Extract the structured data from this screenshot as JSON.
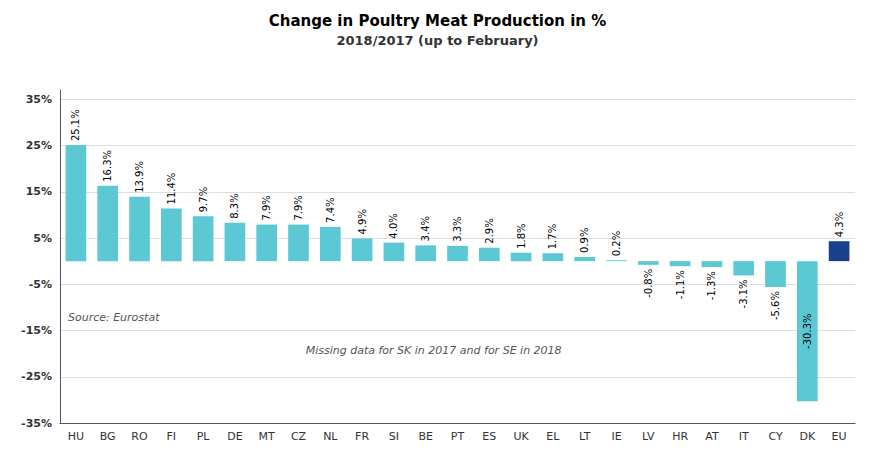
{
  "chart_data": {
    "type": "bar",
    "title": "Change in Poultry Meat Production in %",
    "subtitle": "2018/2017 (up to February)",
    "categories": [
      "HU",
      "BG",
      "RO",
      "FI",
      "PL",
      "DE",
      "MT",
      "CZ",
      "NL",
      "FR",
      "SI",
      "BE",
      "PT",
      "ES",
      "UK",
      "EL",
      "LT",
      "IE",
      "LV",
      "HR",
      "AT",
      "IT",
      "CY",
      "DK",
      "EU"
    ],
    "values": [
      25.1,
      16.3,
      13.9,
      11.4,
      9.7,
      8.3,
      7.9,
      7.9,
      7.4,
      4.9,
      4.0,
      3.4,
      3.3,
      2.9,
      1.8,
      1.7,
      0.9,
      0.2,
      -0.8,
      -1.1,
      -1.3,
      -3.1,
      -5.6,
      -30.3,
      4.3
    ],
    "value_labels": [
      "25.1%",
      "16.3%",
      "13.9%",
      "11.4%",
      "9.7%",
      "8.3%",
      "7.9%",
      "7.9%",
      "7.4%",
      "4.9%",
      "4.0%",
      "3.4%",
      "3.3%",
      "2.9%",
      "1.8%",
      "1.7%",
      "0.9%",
      "0.2%",
      "-0.8%",
      "-1.1%",
      "-1.3%",
      "-3.1%",
      "-5.6%",
      "-30.3%",
      "4.3%"
    ],
    "colors": [
      "#5bc8d4",
      "#5bc8d4",
      "#5bc8d4",
      "#5bc8d4",
      "#5bc8d4",
      "#5bc8d4",
      "#5bc8d4",
      "#5bc8d4",
      "#5bc8d4",
      "#5bc8d4",
      "#5bc8d4",
      "#5bc8d4",
      "#5bc8d4",
      "#5bc8d4",
      "#5bc8d4",
      "#5bc8d4",
      "#5bc8d4",
      "#5bc8d4",
      "#5bc8d4",
      "#5bc8d4",
      "#5bc8d4",
      "#5bc8d4",
      "#5bc8d4",
      "#5bc8d4",
      "#1a3f8f"
    ],
    "ylim": [
      -35,
      37
    ],
    "yticks": [
      {
        "value": -35,
        "label": "-35%"
      },
      {
        "value": -25,
        "label": "-25%"
      },
      {
        "value": -15,
        "label": "-15%"
      },
      {
        "value": -5,
        "label": "-5%"
      },
      {
        "value": 5,
        "label": "5%"
      },
      {
        "value": 15,
        "label": "15%"
      },
      {
        "value": 25,
        "label": "25%"
      },
      {
        "value": 35,
        "label": "35%"
      }
    ],
    "grid": true,
    "data_labels": true,
    "annotations": [
      "Source: Eurostat",
      "Missing data for SK in 2017 and for SE in 2018"
    ]
  }
}
